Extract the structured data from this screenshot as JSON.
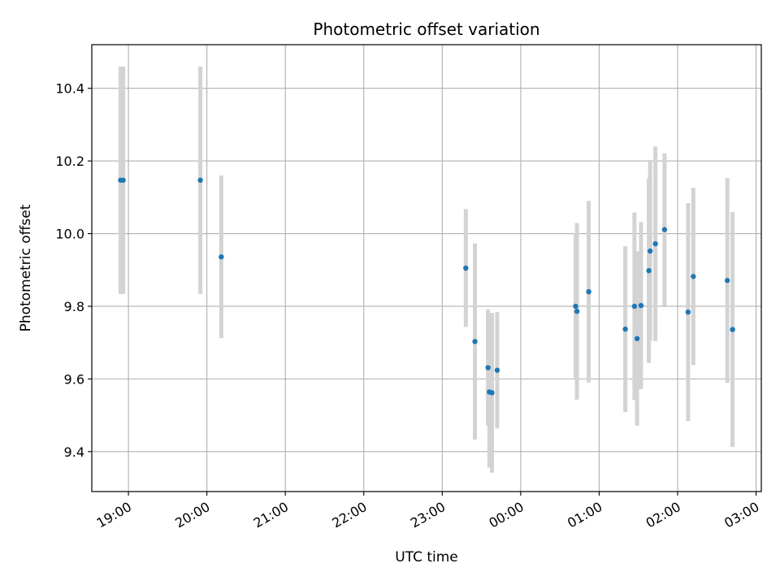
{
  "chart_data": {
    "type": "scatter",
    "title": "Photometric offset variation",
    "xlabel": "UTC time",
    "ylabel": "Photometric offset",
    "x_unit": "hours",
    "x_ticks": [
      {
        "value": "19:00",
        "label": "19:00"
      },
      {
        "value": "20:00",
        "label": "20:00"
      },
      {
        "value": "21:00",
        "label": "21:00"
      },
      {
        "value": "22:00",
        "label": "22:00"
      },
      {
        "value": "23:00",
        "label": "23:00"
      },
      {
        "value": "00:00",
        "label": "00:00"
      },
      {
        "value": "01:00",
        "label": "01:00"
      },
      {
        "value": "02:00",
        "label": "02:00"
      },
      {
        "value": "03:00",
        "label": "03:00"
      }
    ],
    "y_ticks": [
      9.4,
      9.6,
      9.8,
      10.0,
      10.2,
      10.4
    ],
    "y_tick_labels": [
      "9.4",
      "9.6",
      "9.8",
      "10.0",
      "10.2",
      "10.4"
    ],
    "xlim": [
      "18:32",
      "03:04"
    ],
    "ylim": [
      9.29,
      10.52
    ],
    "grid": true,
    "marker_color": "#1f77b4",
    "errorbar_color": "#d3d3d3",
    "points": [
      {
        "x": "18:54",
        "y": 10.147,
        "err": 0.313
      },
      {
        "x": "18:56",
        "y": 10.147,
        "err": 0.313
      },
      {
        "x": "19:55",
        "y": 10.147,
        "err": 0.313
      },
      {
        "x": "20:11",
        "y": 9.936,
        "err": 0.224
      },
      {
        "x": "23:18",
        "y": 9.905,
        "err": 0.162
      },
      {
        "x": "23:25",
        "y": 9.703,
        "err": 0.27
      },
      {
        "x": "23:35",
        "y": 9.631,
        "err": 0.16
      },
      {
        "x": "23:36",
        "y": 9.564,
        "err": 0.208
      },
      {
        "x": "23:38",
        "y": 9.562,
        "err": 0.22
      },
      {
        "x": "23:42",
        "y": 9.624,
        "err": 0.16
      },
      {
        "x": "00:42",
        "y": 9.8,
        "err": 0.2
      },
      {
        "x": "00:43",
        "y": 9.786,
        "err": 0.243
      },
      {
        "x": "00:52",
        "y": 9.84,
        "err": 0.25
      },
      {
        "x": "01:20",
        "y": 9.737,
        "err": 0.228
      },
      {
        "x": "01:27",
        "y": 9.8,
        "err": 0.258
      },
      {
        "x": "01:29",
        "y": 9.711,
        "err": 0.24
      },
      {
        "x": "01:32",
        "y": 9.802,
        "err": 0.23
      },
      {
        "x": "01:38",
        "y": 9.898,
        "err": 0.254
      },
      {
        "x": "01:39",
        "y": 9.952,
        "err": 0.246
      },
      {
        "x": "01:43",
        "y": 9.972,
        "err": 0.268
      },
      {
        "x": "01:50",
        "y": 10.011,
        "err": 0.21
      },
      {
        "x": "02:08",
        "y": 9.784,
        "err": 0.3
      },
      {
        "x": "02:12",
        "y": 9.882,
        "err": 0.244
      },
      {
        "x": "02:38",
        "y": 9.871,
        "err": 0.282
      },
      {
        "x": "02:42",
        "y": 9.736,
        "err": 0.323
      }
    ]
  }
}
